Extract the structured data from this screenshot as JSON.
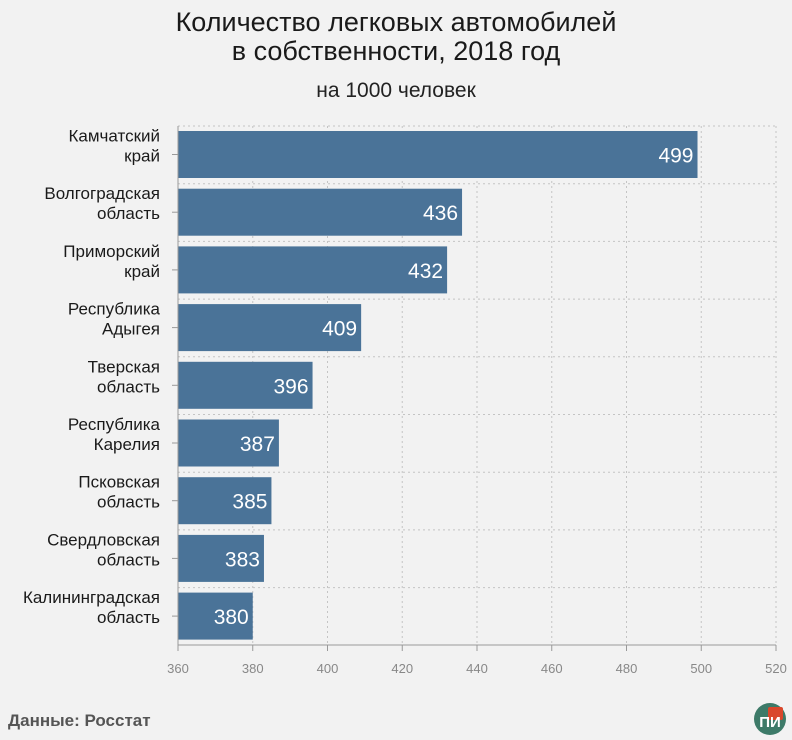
{
  "header": {
    "title_line1": "Количество легковых автомобилей",
    "title_line2": "в собственности, 2018 год",
    "subtitle": "на 1000 человек"
  },
  "footer": {
    "source": "Данные: Росстат",
    "logo_text": "ПИ"
  },
  "colors": {
    "bar": "#4a7398",
    "grid": "#c4c4c4",
    "axis": "#999999",
    "logo_bg": "#3d7a68",
    "logo_accent": "#d9472b"
  },
  "chart_data": {
    "type": "bar",
    "orientation": "horizontal",
    "categories": [
      [
        "Камчатский",
        "край"
      ],
      [
        "Волгоградская",
        "область"
      ],
      [
        "Приморский",
        "край"
      ],
      [
        "Республика",
        "Адыгея"
      ],
      [
        "Тверская",
        "область"
      ],
      [
        "Республика",
        "Карелия"
      ],
      [
        "Псковская",
        "область"
      ],
      [
        "Свердловская",
        "область"
      ],
      [
        "Калининградская",
        "область"
      ]
    ],
    "values": [
      499,
      436,
      432,
      409,
      396,
      387,
      385,
      383,
      380
    ],
    "xlim": [
      360,
      520
    ],
    "xticks": [
      360,
      380,
      400,
      420,
      440,
      460,
      480,
      500,
      520
    ],
    "grid": true,
    "data_labels": true
  }
}
